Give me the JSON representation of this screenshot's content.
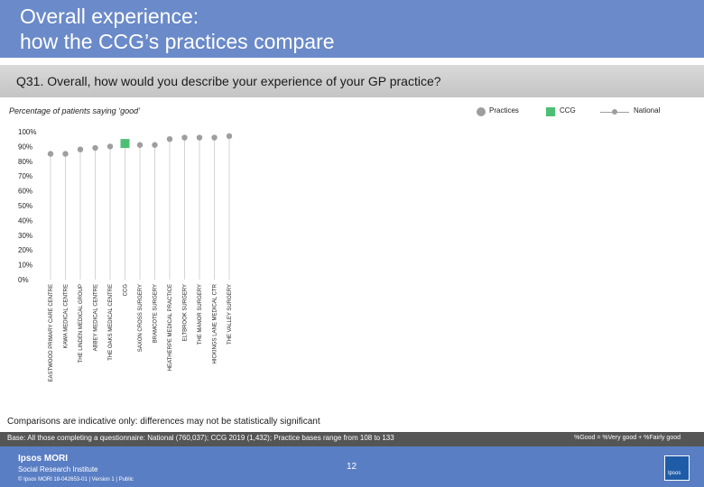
{
  "header": {
    "title_line1": "Overall experience:",
    "title_line2": "how the CCG’s practices compare",
    "question": "Q31. Overall, how would you describe your experience of your GP practice?",
    "subtitle": "Percentage of patients saying ‘good’"
  },
  "legend": {
    "practices": "Practices",
    "ccg": "CCG",
    "national": "National"
  },
  "colors": {
    "title_band": "#6a8ac9",
    "practice_dot": "#9e9e9e",
    "ccg_marker": "#4dbf74",
    "footer": "#5a7ec3"
  },
  "chart_data": {
    "type": "scatter",
    "title": "",
    "xlabel": "",
    "ylabel": "",
    "ylim": [
      0,
      100
    ],
    "y_ticks": [
      "0%",
      "10%",
      "20%",
      "30%",
      "40%",
      "50%",
      "60%",
      "70%",
      "80%",
      "90%",
      "100%"
    ],
    "grid": false,
    "categories": [
      "EASTWOOD PRIMARY CARE CENTRE",
      "KAWA MEDICAL CENTRE",
      "THE LINDEN MEDICAL GROUP",
      "ABBEY MEDICAL CENTRE",
      "THE OAKS MEDICAL CENTRE",
      "CCG",
      "SAXON CROSS SURGERY",
      "BRAMCOTE SURGERY",
      "HEATHERPE MEDICAL PRACTICE",
      "ELTBROOK SURGERY",
      "THE MANOR SURGERY",
      "HICKINGS LANE MEDICAL CTR",
      "THE VALLEY SURGERY"
    ],
    "values": [
      85,
      85,
      88,
      89,
      90,
      92,
      91,
      91,
      95,
      96,
      96,
      96,
      97
    ],
    "marker": [
      "practice",
      "practice",
      "practice",
      "practice",
      "practice",
      "ccg",
      "practice",
      "practice",
      "practice",
      "practice",
      "practice",
      "practice",
      "practice"
    ]
  },
  "notes": {
    "comparisons": "Comparisons are indicative only: differences may not be statistically significant",
    "base": "Base: All those completing a questionnaire: National (760,037); CCG 2019 (1,432); Practice bases range from 108 to 133",
    "definition": "%Good = %Very good + %Fairly good"
  },
  "footer": {
    "logo_line1": "Ipsos MORI",
    "logo_line2": "Social Research Institute",
    "page_number": "12",
    "copyright": "© Ipsos MORI      18-042653-01 | Version 1 | Public",
    "badge": "Ipsos"
  }
}
